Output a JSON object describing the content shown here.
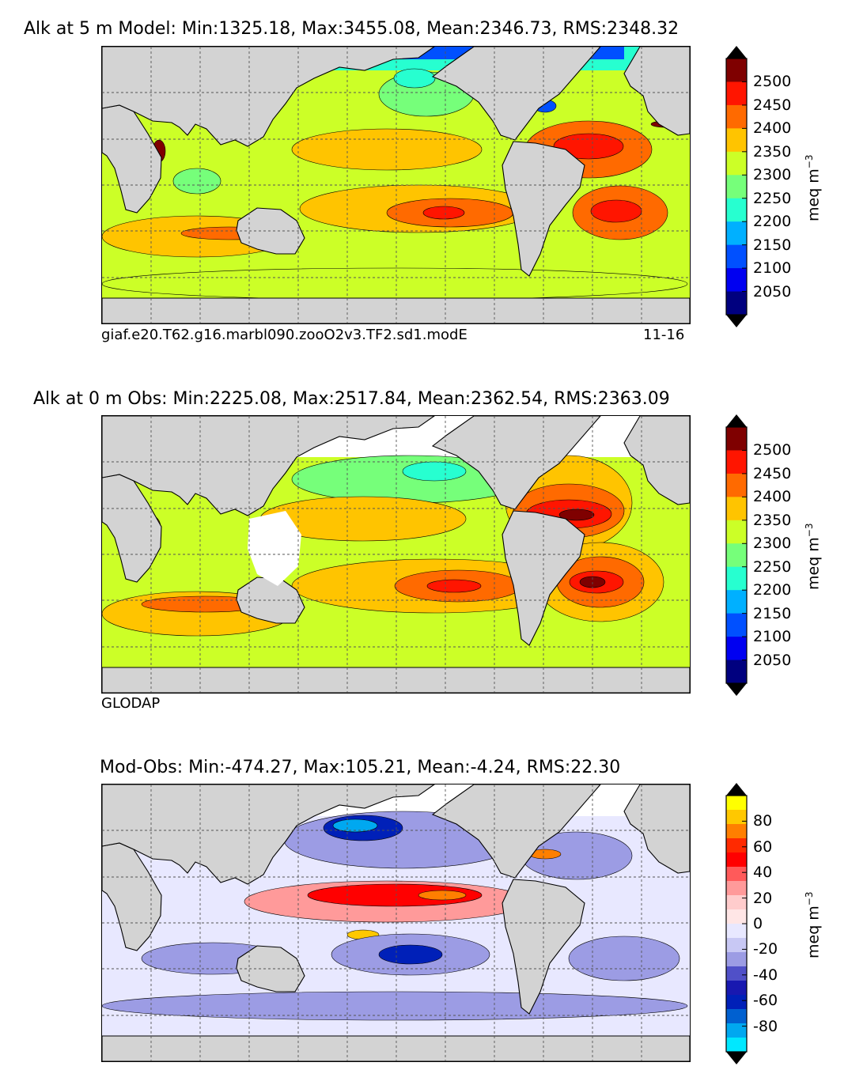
{
  "chart_data": [
    {
      "type": "heatmap",
      "title": "Alk at 5 m Model: Min:1325.18, Max:3455.08, Mean:2346.73, RMS:2348.32",
      "caption_left": "giaf.e20.T62.g16.marbl090.zooO2v3.TF2.sd1.modE",
      "caption_right": "11-16",
      "stats": {
        "min": 1325.18,
        "max": 3455.08,
        "mean": 2346.73,
        "rms": 2348.32
      },
      "colorbar": {
        "label": "meq m",
        "label_exponent": "−3",
        "ticks": [
          "2500",
          "2450",
          "2400",
          "2350",
          "2300",
          "2250",
          "2200",
          "2150",
          "2100",
          "2050"
        ],
        "colors": [
          "#7f0000",
          "#ff1500",
          "#ff6a00",
          "#ffc400",
          "#ccff27",
          "#76ff7a",
          "#27ffd0",
          "#00b0ff",
          "#0050ff",
          "#0000f1",
          "#00007f"
        ],
        "extend_top": "#000000",
        "extend_bottom": "#000000"
      }
    },
    {
      "type": "heatmap",
      "title": "Alk at 0 m Obs: Min:2225.08, Max:2517.84, Mean:2362.54, RMS:2363.09",
      "caption_left": "GLODAP",
      "caption_right": "",
      "stats": {
        "min": 2225.08,
        "max": 2517.84,
        "mean": 2362.54,
        "rms": 2363.09
      },
      "colorbar": {
        "label": "meq m",
        "label_exponent": "−3",
        "ticks": [
          "2500",
          "2450",
          "2400",
          "2350",
          "2300",
          "2250",
          "2200",
          "2150",
          "2100",
          "2050"
        ],
        "colors": [
          "#7f0000",
          "#ff1500",
          "#ff6a00",
          "#ffc400",
          "#ccff27",
          "#76ff7a",
          "#27ffd0",
          "#00b0ff",
          "#0050ff",
          "#0000f1",
          "#00007f"
        ],
        "extend_top": "#000000",
        "extend_bottom": "#000000"
      }
    },
    {
      "type": "heatmap",
      "title": "Mod-Obs: Min:-474.27, Max:105.21, Mean:-4.24, RMS:22.30",
      "caption_left": "",
      "caption_right": "",
      "stats": {
        "min": -474.27,
        "max": 105.21,
        "mean": -4.24,
        "rms": 22.3
      },
      "colorbar": {
        "label": "meq m",
        "label_exponent": "−3",
        "ticks": [
          "80",
          "60",
          "40",
          "20",
          "0",
          "-20",
          "-40",
          "-60",
          "-80"
        ],
        "colors": [
          "#ffff00",
          "#ffc800",
          "#ff7f00",
          "#ff2a00",
          "#ff0000",
          "#ff5a5a",
          "#ff9a9a",
          "#ffcccc",
          "#ffe6e6",
          "#e8e8ff",
          "#c8c8f4",
          "#9c9ce4",
          "#5050c8",
          "#1818b0",
          "#0020b8",
          "#0060d0",
          "#00a8f0",
          "#00e8ff"
        ],
        "extend_top": "#000000",
        "extend_bottom": "#000000"
      }
    }
  ],
  "colors": {
    "land": "#d3d3d3",
    "missing": "#ffffff",
    "grid": "#555555",
    "contour": "#000000"
  }
}
